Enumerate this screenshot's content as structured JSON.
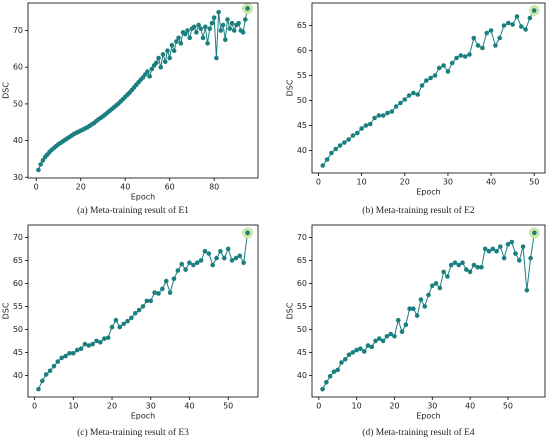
{
  "chart_data": [
    {
      "type": "line",
      "caption": "(a) Meta-training result of E1",
      "xlabel": "Epoch",
      "ylabel": "DSC",
      "color": "#1b7f80",
      "highlight_color": "#c9e6a3",
      "x": [
        1,
        2,
        3,
        4,
        5,
        6,
        7,
        8,
        9,
        10,
        11,
        12,
        13,
        14,
        15,
        16,
        17,
        18,
        19,
        20,
        21,
        22,
        23,
        24,
        25,
        26,
        27,
        28,
        29,
        30,
        31,
        32,
        33,
        34,
        35,
        36,
        37,
        38,
        39,
        40,
        41,
        42,
        43,
        44,
        45,
        46,
        47,
        48,
        49,
        50,
        51,
        52,
        53,
        54,
        55,
        56,
        57,
        58,
        59,
        60,
        61,
        62,
        63,
        64,
        65,
        66,
        67,
        68,
        69,
        70,
        71,
        72,
        73,
        74,
        75,
        76,
        77,
        78,
        79,
        80,
        81,
        82,
        83,
        84,
        85,
        86,
        87,
        88,
        89,
        90,
        91,
        92,
        93,
        94,
        95
      ],
      "values": [
        32.0,
        33.5,
        34.6,
        35.5,
        36.2,
        36.9,
        37.5,
        38.0,
        38.5,
        39.0,
        39.4,
        39.8,
        40.2,
        40.6,
        41.0,
        41.4,
        41.8,
        42.1,
        42.4,
        42.7,
        43.0,
        43.3,
        43.6,
        44.0,
        44.4,
        44.8,
        45.3,
        45.8,
        46.2,
        46.6,
        47.1,
        47.6,
        48.1,
        48.6,
        49.1,
        49.6,
        50.1,
        50.7,
        51.3,
        51.9,
        52.5,
        53.1,
        53.8,
        54.5,
        55.2,
        55.9,
        56.6,
        57.2,
        58.0,
        58.8,
        57.5,
        59.5,
        60.5,
        61.2,
        62.5,
        60.0,
        63.5,
        61.5,
        64.5,
        62.5,
        66.0,
        64.5,
        67.0,
        68.0,
        66.5,
        69.5,
        69.0,
        70.0,
        68.0,
        70.5,
        71.0,
        69.5,
        71.5,
        70.5,
        68.0,
        71.0,
        66.5,
        70.5,
        72.0,
        73.5,
        62.5,
        75.0,
        70.0,
        71.5,
        67.5,
        73.0,
        70.5,
        72.0,
        70.0,
        71.5,
        72.0,
        70.0,
        69.5,
        73.0,
        76.0
      ],
      "xlim": [
        -3.7,
        99.7
      ],
      "xticks": [
        0,
        20,
        40,
        60,
        80
      ],
      "ylim": [
        29.8,
        77.5
      ],
      "yticks": [
        30,
        40,
        50,
        60,
        70
      ]
    },
    {
      "type": "line",
      "caption": "(b) Meta-training result of E2",
      "xlabel": "Epoch",
      "ylabel": "DSC",
      "color": "#1b7f80",
      "highlight_color": "#c9e6a3",
      "x": [
        1,
        2,
        3,
        4,
        5,
        6,
        7,
        8,
        9,
        10,
        11,
        12,
        13,
        14,
        15,
        16,
        17,
        18,
        19,
        20,
        21,
        22,
        23,
        24,
        25,
        26,
        27,
        28,
        29,
        30,
        31,
        32,
        33,
        34,
        35,
        36,
        37,
        38,
        39,
        40,
        41,
        42,
        43,
        44,
        45,
        46,
        47,
        48,
        49,
        50
      ],
      "values": [
        37.0,
        38.2,
        39.5,
        40.3,
        41.0,
        41.6,
        42.2,
        43.0,
        43.5,
        44.4,
        45.0,
        45.3,
        46.5,
        47.0,
        47.0,
        47.5,
        47.8,
        48.8,
        49.5,
        50.2,
        51.0,
        51.5,
        51.2,
        53.0,
        54.0,
        54.5,
        55.0,
        56.5,
        57.0,
        55.8,
        57.5,
        58.5,
        59.0,
        58.8,
        59.2,
        62.5,
        61.0,
        60.5,
        63.5,
        64.0,
        61.0,
        62.5,
        65.0,
        65.5,
        65.2,
        66.8,
        64.8,
        64.2,
        66.5,
        68.0
      ],
      "xlim": [
        -1.5,
        52.5
      ],
      "xticks": [
        0,
        10,
        20,
        30,
        40,
        50
      ],
      "ylim": [
        35.5,
        69.5
      ],
      "yticks": [
        40,
        45,
        50,
        55,
        60,
        65
      ]
    },
    {
      "type": "line",
      "caption": "(c) Meta-training result of E3",
      "xlabel": "Epoch",
      "ylabel": "DSC",
      "color": "#1b7f80",
      "highlight_color": "#c9e6a3",
      "x": [
        1,
        2,
        3,
        4,
        5,
        6,
        7,
        8,
        9,
        10,
        11,
        12,
        13,
        14,
        15,
        16,
        17,
        18,
        19,
        20,
        21,
        22,
        23,
        24,
        25,
        26,
        27,
        28,
        29,
        30,
        31,
        32,
        33,
        34,
        35,
        36,
        37,
        38,
        39,
        40,
        41,
        42,
        43,
        44,
        45,
        46,
        47,
        48,
        49,
        50,
        51,
        52,
        53,
        54,
        55
      ],
      "values": [
        37.0,
        38.8,
        40.2,
        41.0,
        42.0,
        43.0,
        43.8,
        44.2,
        44.8,
        44.8,
        45.5,
        45.8,
        46.8,
        46.5,
        46.8,
        47.5,
        47.2,
        48.0,
        48.2,
        50.5,
        52.0,
        50.5,
        51.2,
        51.8,
        52.5,
        53.5,
        54.2,
        55.0,
        56.2,
        56.2,
        58.0,
        57.8,
        58.8,
        60.5,
        58.0,
        61.0,
        62.8,
        64.2,
        63.0,
        64.5,
        64.0,
        64.5,
        65.0,
        67.0,
        66.5,
        64.0,
        65.5,
        67.0,
        65.5,
        67.5,
        65.0,
        65.5,
        66.0,
        64.5,
        71.0
      ],
      "xlim": [
        -1.7,
        57.7
      ],
      "xticks": [
        0,
        10,
        20,
        30,
        40,
        50
      ],
      "ylim": [
        35.3,
        72.7
      ],
      "yticks": [
        40,
        45,
        50,
        55,
        60,
        65,
        70
      ]
    },
    {
      "type": "line",
      "caption": "(d) Meta-training result of E4",
      "xlabel": "Epoch",
      "ylabel": "DSC",
      "color": "#1b7f80",
      "highlight_color": "#c9e6a3",
      "x": [
        1,
        2,
        3,
        4,
        5,
        6,
        7,
        8,
        9,
        10,
        11,
        12,
        13,
        14,
        15,
        16,
        17,
        18,
        19,
        20,
        21,
        22,
        23,
        24,
        25,
        26,
        27,
        28,
        29,
        30,
        31,
        32,
        33,
        34,
        35,
        36,
        37,
        38,
        39,
        40,
        41,
        42,
        43,
        44,
        45,
        46,
        47,
        48,
        49,
        50,
        51,
        52,
        53,
        54,
        55,
        56,
        57
      ],
      "values": [
        37.0,
        38.5,
        39.8,
        40.8,
        41.2,
        42.8,
        43.5,
        44.5,
        45.0,
        45.5,
        45.8,
        45.2,
        46.5,
        46.2,
        47.5,
        48.0,
        47.5,
        48.5,
        49.0,
        48.5,
        52.0,
        49.5,
        51.0,
        54.5,
        54.5,
        53.0,
        56.5,
        55.0,
        57.5,
        59.5,
        60.0,
        59.0,
        62.5,
        61.5,
        64.0,
        64.5,
        64.0,
        64.5,
        63.0,
        62.5,
        64.0,
        63.5,
        63.5,
        67.5,
        67.0,
        67.5,
        67.0,
        68.0,
        65.5,
        68.5,
        69.0,
        66.5,
        65.0,
        68.0,
        58.5,
        65.5,
        71.0
      ],
      "xlim": [
        -1.8,
        59.8
      ],
      "xticks": [
        0,
        10,
        20,
        30,
        40,
        50
      ],
      "ylim": [
        35.3,
        72.7
      ],
      "yticks": [
        40,
        45,
        50,
        55,
        60,
        65,
        70
      ]
    }
  ]
}
